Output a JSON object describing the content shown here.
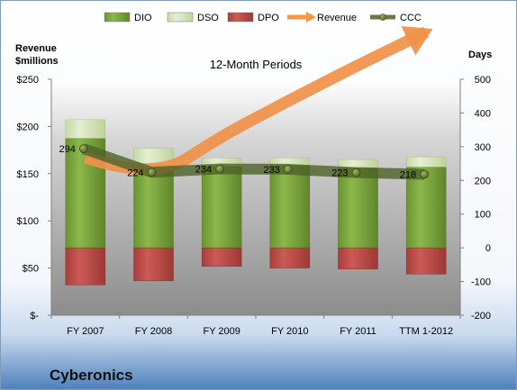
{
  "company": "Cyberonics",
  "chart_data": {
    "type": "bar",
    "title": "12-Month Periods",
    "categories": [
      "FY 2007",
      "FY 2008",
      "FY 2009",
      "FY 2010",
      "FY 2011",
      "TTM 1-2012"
    ],
    "y_left": {
      "label_line1": "Revenue",
      "label_line2": "$millions",
      "ylim": [
        0,
        250
      ],
      "ticks": [
        0,
        50,
        100,
        150,
        200,
        250
      ],
      "tick_labels": [
        "$-",
        "$50",
        "$100",
        "$150",
        "$200",
        "$250"
      ]
    },
    "y_right": {
      "label": "Days",
      "ylim": [
        -200,
        500
      ],
      "ticks": [
        -200,
        -100,
        0,
        100,
        200,
        300,
        400,
        500
      ],
      "tick_labels": [
        "-200",
        "-100",
        "0",
        "100",
        "200",
        "300",
        "400",
        "500"
      ]
    },
    "series": [
      {
        "name": "DIO",
        "kind": "bar-stack-positive",
        "axis": "right",
        "values": [
          325,
          245,
          243,
          245,
          238,
          240
        ],
        "color": "#77a33a"
      },
      {
        "name": "DSO",
        "kind": "bar-stack-positive",
        "axis": "right",
        "values": [
          55,
          50,
          24,
          22,
          24,
          30
        ],
        "color": "#d7e4bd"
      },
      {
        "name": "DPO",
        "kind": "bar-negative",
        "axis": "right",
        "values": [
          -110,
          -98,
          -55,
          -60,
          -63,
          -78
        ],
        "color": "#c0504d"
      },
      {
        "name": "Revenue",
        "kind": "arrow-line",
        "axis": "left",
        "values": [
          167,
          143,
          190,
          228,
          265,
          300
        ],
        "color": "#f79646"
      },
      {
        "name": "CCC",
        "kind": "line-markers",
        "axis": "right",
        "values": [
          294,
          224,
          234,
          233,
          223,
          218
        ],
        "labels": [
          "294",
          "224",
          "234",
          "233",
          "223",
          "218"
        ],
        "color": "#4f6228"
      }
    ],
    "legend": {
      "position": "top"
    },
    "grid": false
  }
}
